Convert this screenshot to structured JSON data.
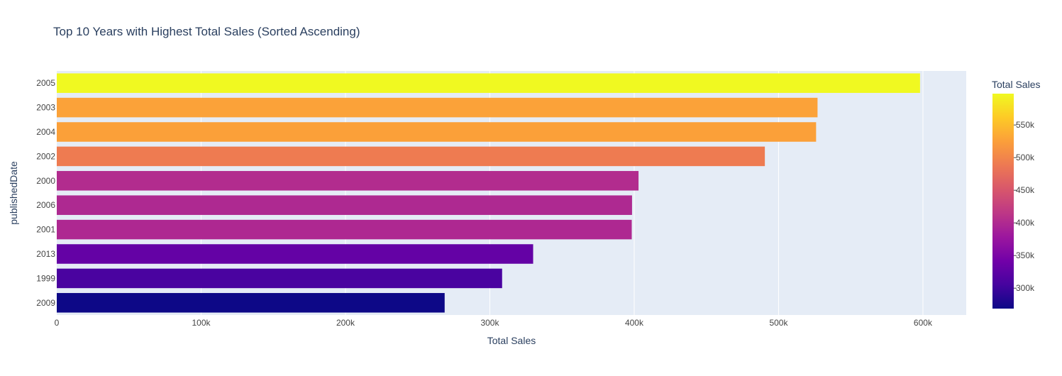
{
  "chart_data": {
    "type": "bar",
    "orientation": "horizontal",
    "title": "Top 10 Years with Highest Total Sales (Sorted Ascending)",
    "xlabel": "Total Sales",
    "ylabel": "publishedDate",
    "categories": [
      "2005",
      "2003",
      "2004",
      "2002",
      "2000",
      "2006",
      "2001",
      "2013",
      "1999",
      "2009"
    ],
    "values": [
      598000,
      527000,
      526000,
      490500,
      403000,
      398500,
      398300,
      330000,
      308500,
      268700
    ],
    "xlim": [
      0,
      630000
    ],
    "x_ticks": [
      0,
      100000,
      200000,
      300000,
      400000,
      500000,
      600000
    ],
    "x_tick_labels": [
      "0",
      "100k",
      "200k",
      "300k",
      "400k",
      "500k",
      "600k"
    ],
    "grid": true,
    "colorbar": {
      "title": "Total Sales",
      "colorscale": "Plasma",
      "range": [
        268700,
        598000
      ],
      "ticks": [
        300000,
        350000,
        400000,
        450000,
        500000,
        550000
      ],
      "tick_labels": [
        "300k",
        "350k",
        "400k",
        "450k",
        "500k",
        "550k"
      ],
      "placement": "right"
    }
  },
  "colors": {
    "plot_background": "#e5ecf6",
    "gridline": "#ffffff",
    "text": "#2a3f5f",
    "tick_text": "#444444",
    "plasma": [
      "#0d0887",
      "#46039f",
      "#7201a8",
      "#9c179e",
      "#bd3786",
      "#d8576b",
      "#ed7953",
      "#fb9f3a",
      "#fdca26",
      "#f0f921"
    ]
  }
}
